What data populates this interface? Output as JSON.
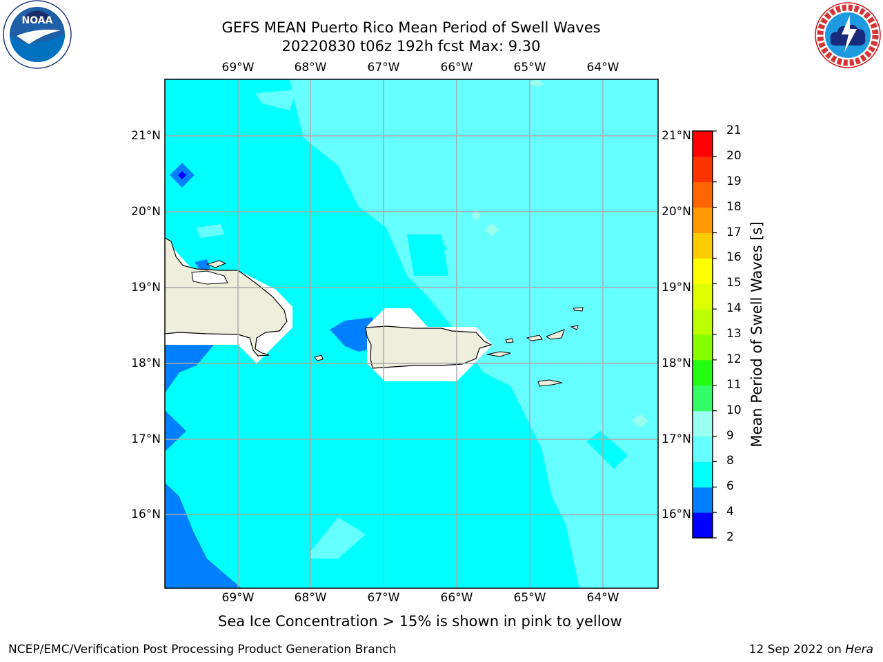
{
  "header": {
    "title_line1": "GEFS MEAN Puerto Rico Mean Period of Swell Waves",
    "title_line2": "20220830 t06z 192h fcst   Max: 9.30"
  },
  "axes": {
    "lon_labels": [
      "69°W",
      "68°W",
      "67°W",
      "66°W",
      "65°W",
      "64°W"
    ],
    "lat_labels": [
      "21°N",
      "20°N",
      "19°N",
      "18°N",
      "17°N",
      "16°N"
    ]
  },
  "colorbar": {
    "label": "Mean Period of Swell Waves [s]",
    "ticks": [
      "21",
      "20",
      "19",
      "18",
      "17",
      "16",
      "15",
      "14",
      "13",
      "12",
      "11",
      "10",
      "9",
      "8",
      "6",
      "4",
      "2"
    ],
    "bin_colors": [
      "#0000ff",
      "#0080ff",
      "#00ffff",
      "#66ffff",
      "#99ffee",
      "#33ff66",
      "#22ff11",
      "#88ff00",
      "#bbff00",
      "#ddff00",
      "#ffff00",
      "#ffcc00",
      "#ff9900",
      "#ff6600",
      "#ff3300",
      "#ff0000"
    ]
  },
  "note": "Sea Ice Concentration > 15% is shown in pink to yellow",
  "footer": {
    "left": "NCEP/EMC/Verification Post Processing Product Generation Branch",
    "right_date": "12 Sep 2022 on",
    "right_host": "Hera"
  },
  "logos": {
    "noaa_text": "NOAA",
    "nws_text": "NATIONAL WEATHER SERVICE"
  }
}
